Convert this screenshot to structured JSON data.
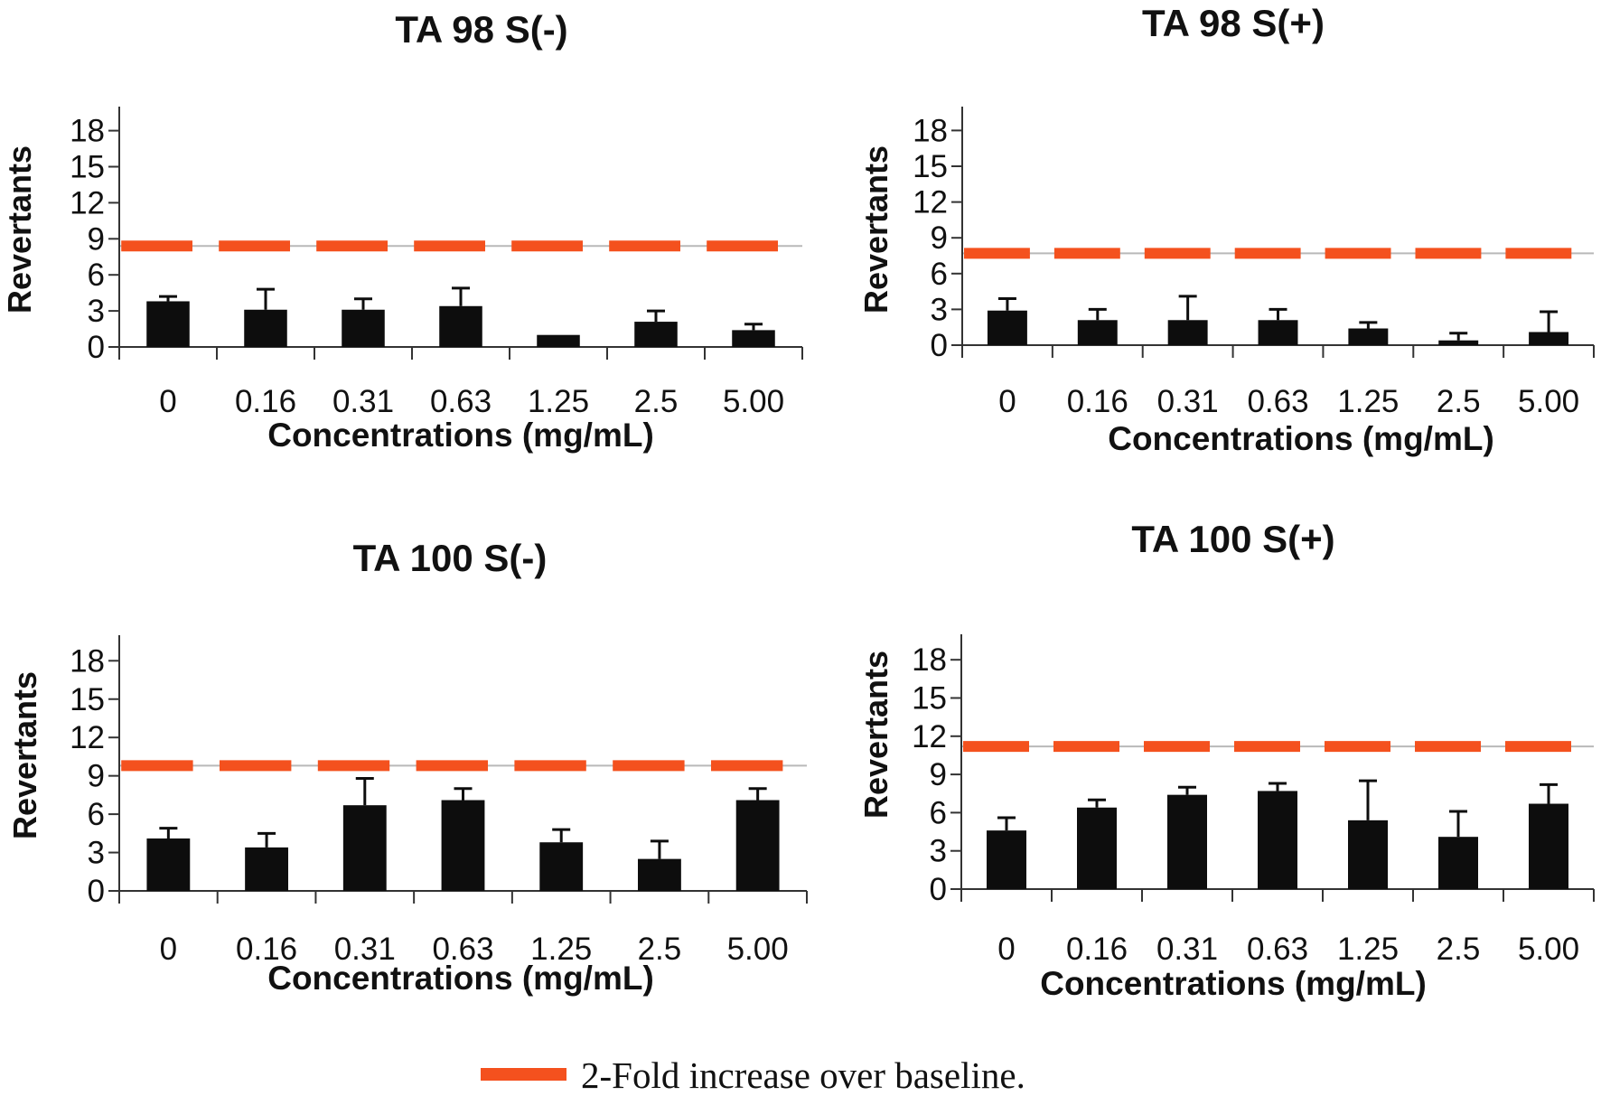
{
  "chart_data": [
    {
      "type": "bar",
      "title": "TA 98 S(-)",
      "xlabel": "Concentrations (mg/mL)",
      "ylabel": "Revertants",
      "categories": [
        "0",
        "0.16",
        "0.31",
        "0.63",
        "1.25",
        "2.5",
        "5.00"
      ],
      "values": [
        3.8,
        3.1,
        3.1,
        3.4,
        1.0,
        2.1,
        1.4
      ],
      "error_upper": [
        0.4,
        1.7,
        0.9,
        1.5,
        0.0,
        0.9,
        0.5
      ],
      "threshold": 8.4,
      "yticks": [
        0,
        3,
        6,
        9,
        12,
        15,
        18
      ],
      "ylim": [
        0,
        20
      ]
    },
    {
      "type": "bar",
      "title": "TA 98 S(+)",
      "xlabel": "Concentrations (mg/mL)",
      "ylabel": "Revertants",
      "categories": [
        "0",
        "0.16",
        "0.31",
        "0.63",
        "1.25",
        "2.5",
        "5.00"
      ],
      "values": [
        2.9,
        2.1,
        2.1,
        2.1,
        1.4,
        0.4,
        1.1
      ],
      "error_upper": [
        1.0,
        0.9,
        2.0,
        0.9,
        0.5,
        0.6,
        1.7
      ],
      "threshold": 7.7,
      "yticks": [
        0,
        3,
        6,
        9,
        12,
        15,
        18
      ],
      "ylim": [
        0,
        20
      ]
    },
    {
      "type": "bar",
      "title": "TA 100 S(-)",
      "xlabel": "Concentrations (mg/mL)",
      "ylabel": "Revertants",
      "categories": [
        "0",
        "0.16",
        "0.31",
        "0.63",
        "1.25",
        "2.5",
        "5.00"
      ],
      "values": [
        4.1,
        3.4,
        6.7,
        7.1,
        3.8,
        2.5,
        7.1
      ],
      "error_upper": [
        0.8,
        1.1,
        2.1,
        0.9,
        1.0,
        1.4,
        0.9
      ],
      "threshold": 9.8,
      "yticks": [
        0,
        3,
        6,
        9,
        12,
        15,
        18
      ],
      "ylim": [
        0,
        20
      ]
    },
    {
      "type": "bar",
      "title": "TA 100 S(+)",
      "xlabel": "Concentrations (mg/mL)",
      "ylabel": "Revertants",
      "categories": [
        "0",
        "0.16",
        "0.31",
        "0.63",
        "1.25",
        "2.5",
        "5.00"
      ],
      "values": [
        4.6,
        6.4,
        7.4,
        7.7,
        5.4,
        4.1,
        6.7
      ],
      "error_upper": [
        1.0,
        0.6,
        0.6,
        0.6,
        3.1,
        2.0,
        1.5
      ],
      "threshold": 11.2,
      "yticks": [
        0,
        3,
        6,
        9,
        12,
        15,
        18
      ],
      "ylim": [
        0,
        20
      ]
    }
  ],
  "legend": {
    "label": "2-Fold increase over baseline.",
    "color": "#f4511e"
  },
  "colors": {
    "bar": "#0d0d0d",
    "threshold": "#f4511e",
    "threshold_guide": "#b9b9b9",
    "axis": "#333333"
  }
}
